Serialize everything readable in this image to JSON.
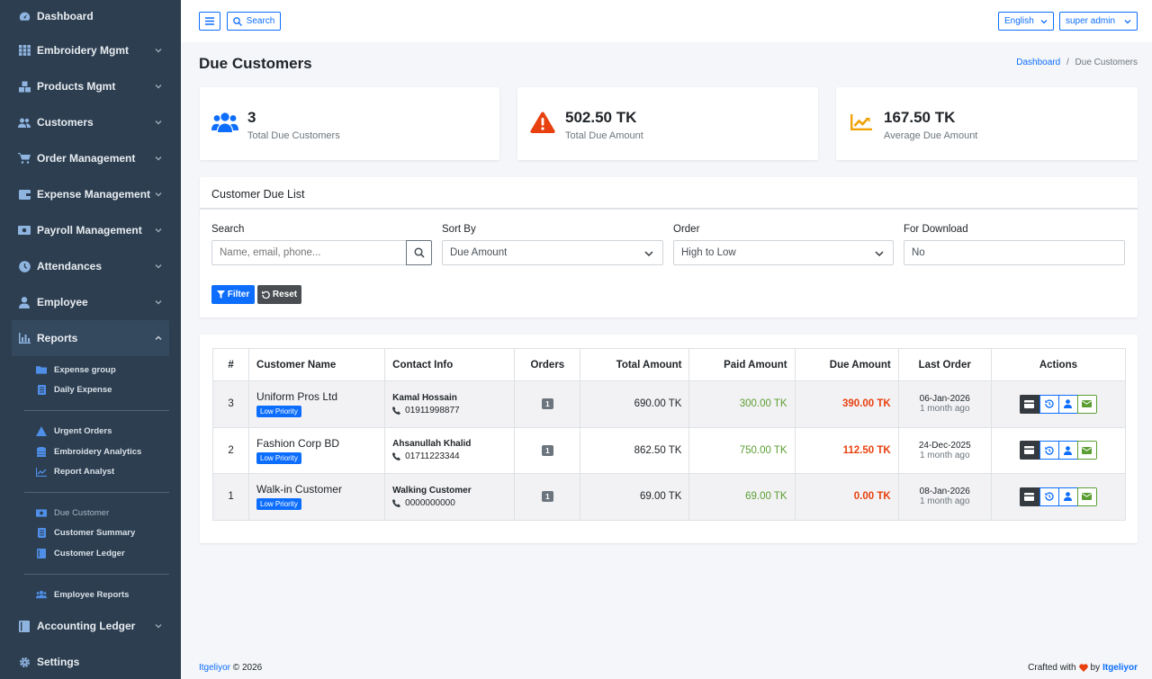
{
  "sidebar": {
    "items": [
      {
        "label": "Dashboard",
        "icon": "dashboard-icon"
      },
      {
        "label": "Embroidery Mgmt",
        "icon": "grid-icon"
      },
      {
        "label": "Products Mgmt",
        "icon": "boxes-icon"
      },
      {
        "label": "Customers",
        "icon": "users-icon"
      },
      {
        "label": "Order Management",
        "icon": "cart-icon"
      },
      {
        "label": "Expense Management",
        "icon": "wallet-icon"
      },
      {
        "label": "Payroll Management",
        "icon": "money-icon"
      },
      {
        "label": "Attendances",
        "icon": "clock-icon"
      },
      {
        "label": "Employee",
        "icon": "user-icon"
      },
      {
        "label": "Reports",
        "icon": "chart-icon"
      },
      {
        "label": "Accounting Ledger",
        "icon": "book-icon"
      },
      {
        "label": "Settings",
        "icon": "gear-icon"
      }
    ],
    "reports_sub": [
      {
        "label": "Expense group"
      },
      {
        "label": "Daily Expense"
      },
      {
        "label": "Urgent Orders"
      },
      {
        "label": "Embroidery Analytics"
      },
      {
        "label": "Report Analyst"
      },
      {
        "label": "Due Customer"
      },
      {
        "label": "Customer Summary"
      },
      {
        "label": "Customer Ledger"
      },
      {
        "label": "Employee Reports"
      }
    ]
  },
  "topbar": {
    "search_label": "Search",
    "language": "English",
    "user": "super admin"
  },
  "page": {
    "title": "Due Customers",
    "breadcrumb_home": "Dashboard",
    "breadcrumb_sep": "/",
    "breadcrumb_current": "Due Customers"
  },
  "stats": [
    {
      "value": "3",
      "label": "Total Due Customers",
      "color": "#0d6efd"
    },
    {
      "value": "502.50 TK",
      "label": "Total Due Amount",
      "color": "#e8410f"
    },
    {
      "value": "167.50 TK",
      "label": "Average Due Amount",
      "color": "#f0a30a"
    }
  ],
  "filters": {
    "header": "Customer Due List",
    "search_label": "Search",
    "search_placeholder": "Name, email, phone...",
    "sort_label": "Sort By",
    "sort_value": "Due Amount",
    "order_label": "Order",
    "order_value": "High to Low",
    "download_label": "For Download",
    "download_value": "No",
    "filter_btn": "Filter",
    "reset_btn": "Reset"
  },
  "table": {
    "headers": [
      "#",
      "Customer Name",
      "Contact Info",
      "Orders",
      "Total Amount",
      "Paid Amount",
      "Due Amount",
      "Last Order",
      "Actions"
    ],
    "rows": [
      {
        "num": "3",
        "name": "Uniform Pros Ltd",
        "priority": "Low Priority",
        "contact": "Kamal Hossain",
        "phone": "01911998877",
        "orders": "1",
        "total": "690.00 TK",
        "paid": "300.00 TK",
        "due": "390.00 TK",
        "date": "06-Jan-2026",
        "ago": "1 month ago"
      },
      {
        "num": "2",
        "name": "Fashion Corp BD",
        "priority": "Low Priority",
        "contact": "Ahsanullah Khalid",
        "phone": "01711223344",
        "orders": "1",
        "total": "862.50 TK",
        "paid": "750.00 TK",
        "due": "112.50 TK",
        "date": "24-Dec-2025",
        "ago": "1 month ago"
      },
      {
        "num": "1",
        "name": "Walk-in Customer",
        "priority": "Low Priority",
        "contact": "Walking Customer",
        "phone": "0000000000",
        "orders": "1",
        "total": "69.00 TK",
        "paid": "69.00 TK",
        "due": "0.00 TK",
        "date": "08-Jan-2026",
        "ago": "1 month ago"
      }
    ]
  },
  "footer": {
    "brand": "Itgeliyor",
    "copyright": "© 2026",
    "crafted": "Crafted with",
    "by": "by",
    "author": "Itgeliyor"
  }
}
